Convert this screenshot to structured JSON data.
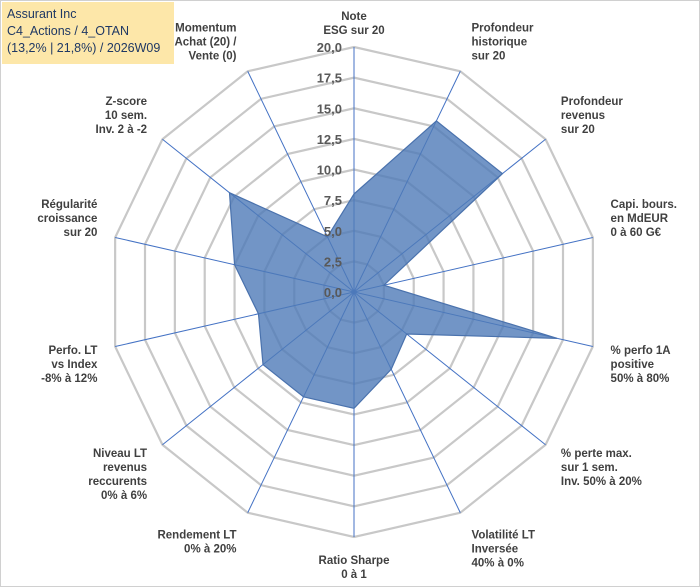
{
  "header": {
    "line1": "Assurant Inc",
    "line2": "C4_Actions / 4_OTAN",
    "line3": "(13,2% | 21,8%) / 2026W09"
  },
  "chart_data": {
    "type": "radar",
    "title": "Assurant Inc",
    "rmax": 20,
    "rmin": 0,
    "step": 2.5,
    "ticks": [
      "0,0",
      "2,5",
      "5,0",
      "7,5",
      "10,0",
      "12,5",
      "15,0",
      "17,5",
      "20,0"
    ],
    "axes": [
      {
        "label": [
          "Note",
          "ESG sur 20"
        ],
        "value": 8.0
      },
      {
        "label": [
          "Profondeur",
          "historique",
          "sur 20"
        ],
        "value": 15.5
      },
      {
        "label": [
          "Profondeur",
          "revenus",
          "sur 20"
        ],
        "value": 15.5
      },
      {
        "label": [
          "Capi. bours.",
          "en MdEUR",
          "0 à 60 G€"
        ],
        "value": 2.5
      },
      {
        "label": [
          "% perfo 1A",
          "positive",
          "50% à 80%"
        ],
        "value": 17.0
      },
      {
        "label": [
          "% perte max.",
          "sur 1 sem.",
          "Inv. 50% à 20%"
        ],
        "value": 5.5
      },
      {
        "label": [
          "Volatilité LT",
          "Inversée",
          "40% à 0%"
        ],
        "value": 7.0
      },
      {
        "label": [
          "Ratio Sharpe",
          "0 à 1"
        ],
        "value": 9.5
      },
      {
        "label": [
          "Rendement LT",
          "0% à 20%"
        ],
        "value": 9.5
      },
      {
        "label": [
          "Niveau LT",
          "revenus",
          "reccurents",
          "0% à 6%"
        ],
        "value": 9.5
      },
      {
        "label": [
          "Perfo. LT",
          "vs Index",
          "-8% à 12%"
        ],
        "value": 8.0
      },
      {
        "label": [
          "Régularité",
          "croissance",
          "sur 20"
        ],
        "value": 10.0
      },
      {
        "label": [
          "Z-score",
          "10 sem.",
          "Inv. 2 à -2"
        ],
        "value": 13.0
      },
      {
        "label": [
          "Momentum",
          "Achat (20) /",
          "Vente (0)"
        ],
        "value": 5.0
      }
    ],
    "series": [
      {
        "name": "Assurant Inc",
        "color": "#4f7bb8",
        "values": [
          8.0,
          15.5,
          15.5,
          2.5,
          17.0,
          5.5,
          7.0,
          9.5,
          9.5,
          9.5,
          8.0,
          10.0,
          13.0,
          5.0
        ]
      }
    ]
  }
}
